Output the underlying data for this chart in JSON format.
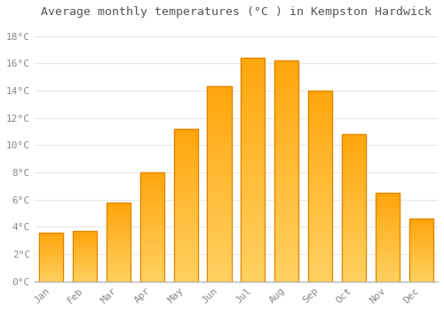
{
  "months": [
    "Jan",
    "Feb",
    "Mar",
    "Apr",
    "May",
    "Jun",
    "Jul",
    "Aug",
    "Sep",
    "Oct",
    "Nov",
    "Dec"
  ],
  "values": [
    3.6,
    3.7,
    5.8,
    8.0,
    11.2,
    14.3,
    16.4,
    16.2,
    14.0,
    10.8,
    6.5,
    4.6
  ],
  "bar_color": "#FFA820",
  "bar_edge_color": "#E08000",
  "title": "Average monthly temperatures (°C ) in Kempston Hardwick",
  "ylabel_ticks": [
    "0°C",
    "2°C",
    "4°C",
    "6°C",
    "8°C",
    "10°C",
    "12°C",
    "14°C",
    "16°C",
    "18°C"
  ],
  "ytick_vals": [
    0,
    2,
    4,
    6,
    8,
    10,
    12,
    14,
    16,
    18
  ],
  "ylim": [
    0,
    19
  ],
  "background_color": "#ffffff",
  "plot_bg_color": "#ffffff",
  "grid_color": "#e8e8e8",
  "title_fontsize": 9.5,
  "tick_fontsize": 8,
  "tick_color": "#888888",
  "title_color": "#555555",
  "bar_width": 0.72
}
